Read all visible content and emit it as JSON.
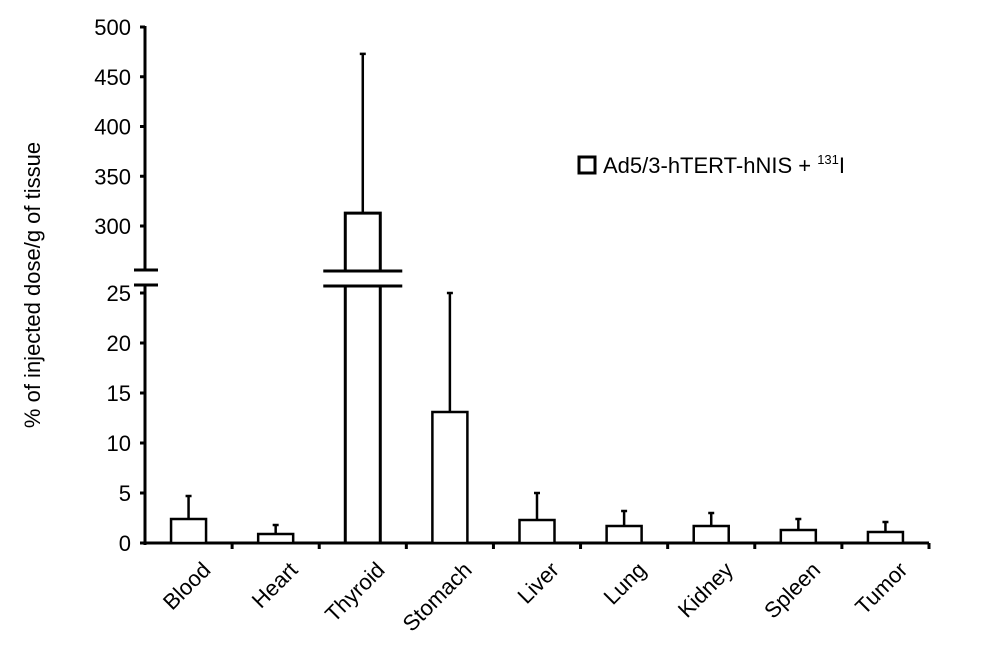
{
  "chart_data": {
    "type": "bar",
    "title": "",
    "xlabel": "",
    "ylabel": "% of injected dose/g of tissue",
    "categories": [
      "Blood",
      "Heart",
      "Thyroid",
      "Stomach",
      "Liver",
      "Lung",
      "Kidney",
      "Spleen",
      "Tumor"
    ],
    "series": [
      {
        "name": "Ad5/3-hTERT-hNIS + 131I",
        "values": [
          2.4,
          0.9,
          313,
          13.1,
          2.3,
          1.7,
          1.7,
          1.3,
          1.1
        ],
        "error_upper": [
          4.7,
          1.8,
          473,
          25.0,
          5.0,
          3.2,
          3.0,
          2.4,
          2.1
        ],
        "fill": "#ffffff",
        "stroke": "#000000"
      }
    ],
    "broken_axis": true,
    "y_segments": [
      {
        "range": [
          0,
          25
        ],
        "ticks": [
          0,
          5,
          10,
          15,
          20,
          25
        ]
      },
      {
        "range": [
          300,
          500
        ],
        "ticks": [
          300,
          350,
          400,
          450,
          500
        ]
      }
    ],
    "ylim": [
      0,
      500
    ],
    "grid": false,
    "legend_position": "upper right"
  },
  "legend": {
    "label_main": "Ad5/3-hTERT-hNIS + ",
    "label_sup": "131",
    "label_tail": "I"
  },
  "axis": {
    "ylabel": "% of injected dose/g of tissue",
    "upper_ticks": [
      "500",
      "450",
      "400",
      "350",
      "300"
    ],
    "lower_ticks": [
      "25",
      "20",
      "15",
      "10",
      "5",
      "0"
    ]
  }
}
